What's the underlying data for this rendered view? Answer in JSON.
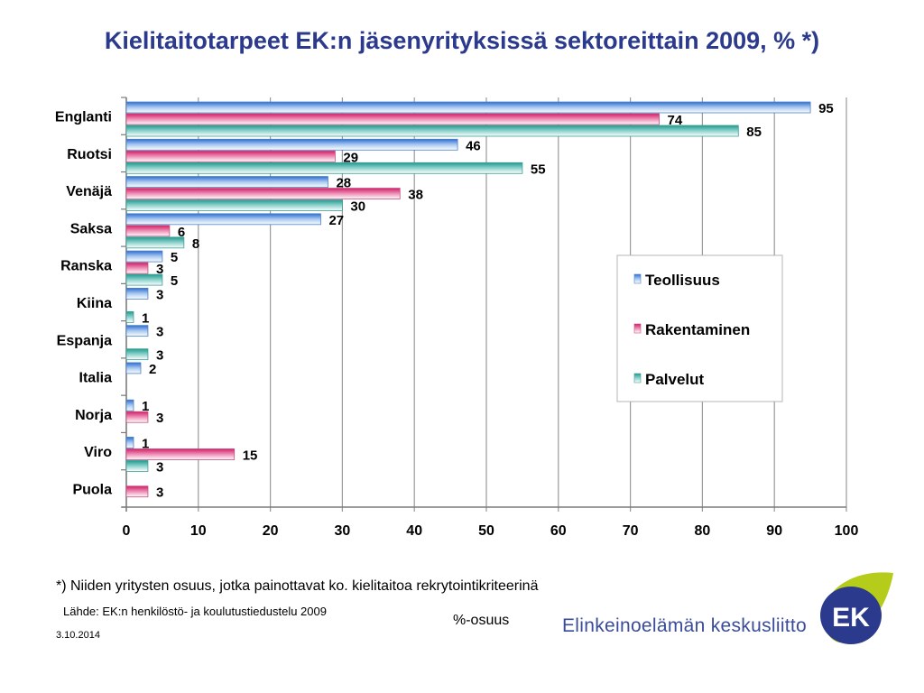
{
  "title": "Kielitaitotarpeet EK:n jäsenyrityksissä sektoreittain 2009, % *)",
  "footnote": "*) Niiden yritysten osuus, jotka painottavat ko. kielitaitoa rekrytointikriteerinä",
  "source": "Lähde: EK:n henkilöstö- ja koulutustiedustelu 2009",
  "date": "3.10.2014",
  "org_name": "Elinkeinoelämän keskusliitto",
  "logo_text": "EK",
  "colors": {
    "teollisuus": "#3b78d6",
    "rakentaminen": "#d6286e",
    "palvelut": "#2aa198",
    "title": "#2b3a8c"
  },
  "chart_data": {
    "type": "bar",
    "orientation": "horizontal",
    "title": "Kielitaitotarpeet EK:n jäsenyrityksissä sektoreittain 2009, % *)",
    "xlabel": "%-osuus",
    "ylabel": "",
    "xlim": [
      0,
      100
    ],
    "xticks": [
      0,
      10,
      20,
      30,
      40,
      50,
      60,
      70,
      80,
      90,
      100
    ],
    "grid": "vertical",
    "legend_position": "right",
    "categories": [
      "Englanti",
      "Ruotsi",
      "Venäjä",
      "Saksa",
      "Ranska",
      "Kiina",
      "Espanja",
      "Italia",
      "Norja",
      "Viro",
      "Puola"
    ],
    "series": [
      {
        "name": "Teollisuus",
        "values": [
          95,
          46,
          28,
          27,
          5,
          3,
          3,
          2,
          1,
          1,
          null
        ]
      },
      {
        "name": "Rakentaminen",
        "values": [
          74,
          29,
          38,
          6,
          3,
          null,
          null,
          null,
          3,
          15,
          3
        ]
      },
      {
        "name": "Palvelut",
        "values": [
          85,
          55,
          30,
          8,
          5,
          1,
          3,
          null,
          null,
          3,
          null
        ]
      }
    ]
  }
}
